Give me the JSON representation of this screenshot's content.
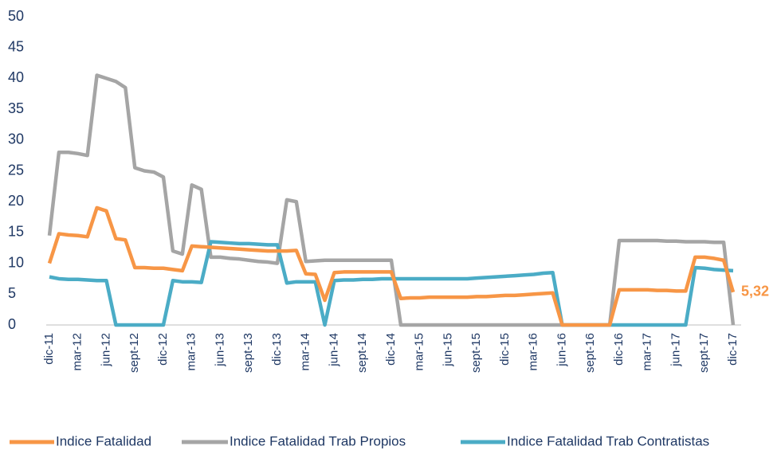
{
  "chart_data": {
    "type": "line",
    "categories": [
      "dic-11",
      null,
      null,
      "mar-12",
      null,
      null,
      "jun-12",
      null,
      null,
      "sept-12",
      null,
      null,
      "dic-12",
      null,
      null,
      "mar-13",
      null,
      null,
      "jun-13",
      null,
      null,
      "sept-13",
      null,
      null,
      "dic-13",
      null,
      null,
      "mar-14",
      null,
      null,
      "jun-14",
      null,
      null,
      "sept-14",
      null,
      null,
      "dic-14",
      null,
      null,
      "mar-15",
      null,
      null,
      "jun-15",
      null,
      null,
      "sept-15",
      null,
      null,
      "dic-15",
      null,
      null,
      "mar-16",
      null,
      null,
      "jun-16",
      null,
      null,
      "sept-16",
      null,
      null,
      "dic-16",
      null,
      null,
      "mar-17",
      null,
      null,
      "jun-17",
      null,
      null,
      "sept-17",
      null,
      null,
      "dic-17"
    ],
    "series": [
      {
        "name": "Indice Fatalidad",
        "color": "#f79646",
        "values": [
          10,
          14.8,
          14.6,
          14.5,
          14.3,
          19,
          18.5,
          14,
          13.8,
          9.3,
          9.3,
          9.2,
          9.2,
          9,
          8.8,
          12.8,
          12.7,
          12.6,
          12.5,
          12.4,
          12.3,
          12.2,
          12.1,
          12,
          12,
          12,
          12.1,
          8.3,
          8.2,
          4,
          8.5,
          8.6,
          8.6,
          8.6,
          8.6,
          8.6,
          8.6,
          4.3,
          4.4,
          4.4,
          4.5,
          4.5,
          4.5,
          4.5,
          4.5,
          4.6,
          4.6,
          4.7,
          4.8,
          4.8,
          4.9,
          5,
          5.1,
          5.2,
          0,
          0,
          0,
          0,
          0,
          0,
          5.7,
          5.7,
          5.7,
          5.7,
          5.6,
          5.6,
          5.5,
          5.5,
          11,
          11,
          10.8,
          10.5,
          5.32
        ],
        "value_labels": [
          null,
          null,
          null,
          null,
          null,
          null,
          null,
          null,
          null,
          null,
          null,
          null,
          null,
          null,
          null,
          null,
          null,
          null,
          null,
          null,
          null,
          null,
          null,
          null,
          null,
          null,
          null,
          null,
          null,
          null,
          null,
          null,
          null,
          null,
          null,
          null,
          null,
          null,
          null,
          null,
          null,
          null,
          null,
          null,
          null,
          null,
          null,
          null,
          null,
          null,
          null,
          null,
          null,
          null,
          null,
          null,
          null,
          null,
          null,
          null,
          null,
          null,
          null,
          null,
          null,
          null,
          null,
          null,
          null,
          null,
          null,
          null,
          "5,32"
        ]
      },
      {
        "name": "Indice Fatalidad Trab Propios",
        "color": "#a5a5a5",
        "values": [
          14.5,
          28,
          28,
          27.8,
          27.5,
          40.5,
          40,
          39.5,
          38.5,
          25.5,
          25,
          24.8,
          24,
          12,
          11.5,
          22.7,
          22,
          11,
          11,
          10.8,
          10.7,
          10.5,
          10.3,
          10.2,
          10,
          20.3,
          20,
          10.3,
          10.4,
          10.5,
          10.5,
          10.5,
          10.5,
          10.5,
          10.5,
          10.5,
          10.5,
          0,
          0,
          0,
          0,
          0,
          0,
          0,
          0,
          0,
          0,
          0,
          0,
          0,
          0,
          0,
          0,
          0,
          0,
          0,
          0,
          0,
          0,
          0,
          13.7,
          13.7,
          13.7,
          13.7,
          13.7,
          13.6,
          13.6,
          13.5,
          13.5,
          13.5,
          13.4,
          13.4,
          0
        ]
      },
      {
        "name": "Indice Fatalidad Trab Contratistas",
        "color": "#4bacc6",
        "values": [
          7.8,
          7.5,
          7.4,
          7.4,
          7.3,
          7.2,
          7.2,
          0,
          0,
          0,
          0,
          0,
          0,
          7.2,
          7,
          7,
          6.9,
          13.5,
          13.4,
          13.3,
          13.2,
          13.2,
          13.1,
          13,
          13,
          6.8,
          7,
          7,
          7,
          0,
          7.2,
          7.3,
          7.3,
          7.4,
          7.4,
          7.5,
          7.5,
          7.5,
          7.5,
          7.5,
          7.5,
          7.5,
          7.5,
          7.5,
          7.5,
          7.6,
          7.7,
          7.8,
          7.9,
          8,
          8.1,
          8.2,
          8.4,
          8.5,
          0,
          0,
          0,
          0,
          0,
          0,
          0,
          0,
          0,
          0,
          0,
          0,
          0,
          0,
          9.3,
          9.2,
          9,
          8.9,
          8.8
        ]
      }
    ],
    "ylim": [
      0,
      50
    ],
    "yticks": [
      0,
      5,
      10,
      15,
      20,
      25,
      30,
      35,
      40,
      45,
      50
    ],
    "grid": false,
    "legend": "bottom"
  }
}
